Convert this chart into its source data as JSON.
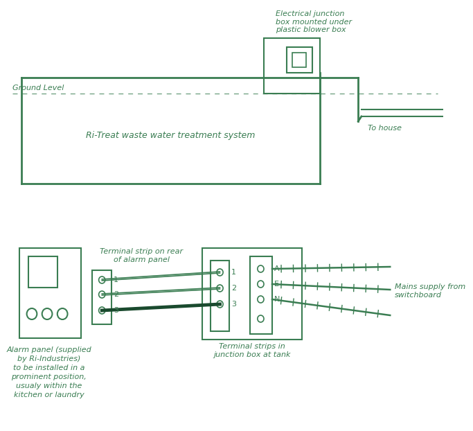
{
  "bg_color": "#ffffff",
  "line_color": "#3a7d52",
  "text_color": "#3a7d52",
  "fig_width": 6.83,
  "fig_height": 6.22,
  "top": {
    "ground_level_label": "Ground Level",
    "treatment_label": "Ri-Treat waste water treatment system",
    "to_house_label": "To house",
    "elec_label": "Electrical junction\nbox mounted under\nplastic blower box"
  },
  "bottom": {
    "alarm_lines": [
      "Alarm panel (supplied",
      "by Ri-Industries)",
      "to be installed in a",
      "prominent position,",
      "usualy within the",
      "kitchen or laundry"
    ],
    "terminal_strip_label": "Terminal strip on rear\nof alarm panel",
    "terminal_strips_label": "Terminal strips in\njunction box at tank",
    "mains_label": "Mains supply from\nswitchboard"
  }
}
